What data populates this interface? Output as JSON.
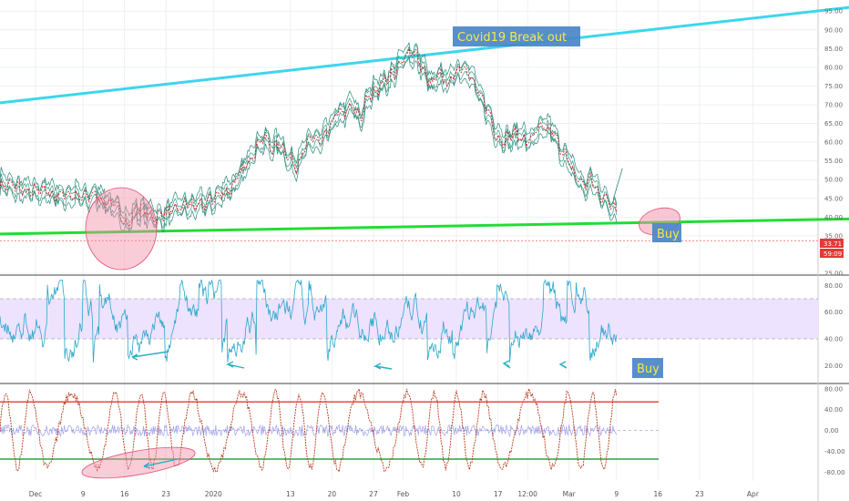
{
  "chart_data": [
    {
      "type": "line",
      "panel": "price",
      "series": [],
      "trendlines": [
        {
          "color": "#3dd6ec",
          "from": {
            "x": "Nov 25",
            "y": 70.5
          },
          "to": {
            "x": "Apr 10",
            "y": 96
          }
        },
        {
          "color": "#22dd33",
          "from": {
            "x": "Nov 25",
            "y": 35.5
          },
          "to": {
            "x": "Apr 10",
            "y": 39.5
          }
        }
      ],
      "ylim": [
        25,
        97
      ],
      "y_ticks": [
        "95.00",
        "90.00",
        "85.00",
        "80.00",
        "75.00",
        "70.00",
        "65.00",
        "60.00",
        "55.00",
        "50.00",
        "45.00",
        "40.00",
        "35.00",
        "25.00"
      ],
      "price_samples": [
        49,
        48.5,
        47.8,
        47.2,
        46.6,
        47.2,
        46.8,
        46.2,
        45.6,
        46.0,
        45.5,
        45.0,
        46.0,
        44.5,
        43.0,
        41.5,
        38.0,
        42.0,
        41.5,
        40.5,
        40.0,
        41.0,
        42.5,
        43.0,
        42.8,
        43.5,
        44.0,
        45.0,
        47.0,
        48.0,
        51.0,
        55.0,
        59.0,
        61.0,
        58.5,
        60.0,
        55.5,
        54.0,
        58.0,
        61.0,
        60.0,
        63.0,
        67.0,
        68.0,
        70.0,
        66.0,
        72.0,
        74.5,
        76.0,
        78.0,
        81.0,
        84.0,
        83.0,
        79.0,
        75.0,
        78.0,
        76.0,
        79.0,
        80.0,
        77.0,
        72.0,
        68.0,
        62.0,
        60.5,
        61.5,
        62.0,
        60.0,
        62.5,
        64.0,
        63.0,
        58.0,
        55.0,
        51.0,
        48.0,
        50.0,
        46.0,
        44.0,
        42.0
      ],
      "annotations": {
        "title_box": "Covid19 Break out",
        "buy_label": "Buy",
        "price_tag": "33.71",
        "countdown_tag": "59:09"
      }
    },
    {
      "type": "line",
      "panel": "rsi",
      "ylim": [
        10,
        85
      ],
      "band": [
        40,
        70
      ],
      "y_ticks": [
        "80.00",
        "60.00",
        "40.00",
        "20.00"
      ],
      "annotations": {
        "buy_label": "Buy"
      }
    },
    {
      "type": "line",
      "panel": "oscillator",
      "ylim": [
        -90,
        85
      ],
      "upper_level": 55,
      "lower_level": -55,
      "y_ticks": [
        "80.00",
        "40.00",
        "0.00",
        "-40.00",
        "-80.00"
      ]
    }
  ],
  "x_axis": {
    "labels": [
      {
        "text": "Dec",
        "d": 6
      },
      {
        "text": "9",
        "d": 14
      },
      {
        "text": "16",
        "d": 21
      },
      {
        "text": "23",
        "d": 28
      },
      {
        "text": "2020",
        "d": 36
      },
      {
        "text": "13",
        "d": 49
      },
      {
        "text": "20",
        "d": 56
      },
      {
        "text": "27",
        "d": 63
      },
      {
        "text": "Feb",
        "d": 68
      },
      {
        "text": "10",
        "d": 77
      },
      {
        "text": "17",
        "d": 84
      },
      {
        "text": "12:00",
        "d": 89
      },
      {
        "text": "Mar",
        "d": 96
      },
      {
        "text": "9",
        "d": 104
      },
      {
        "text": "16",
        "d": 111
      },
      {
        "text": "23",
        "d": 118
      },
      {
        "text": "Apr",
        "d": 127
      }
    ]
  },
  "colors": {
    "price_line": "#2e8a7a",
    "price_inner": "#cc2222",
    "rsi_line": "#2aa6cc",
    "rsi_band": "#ede3ff",
    "osc_line": "#b83a1c",
    "osc_hist": "#8a8ae6",
    "upper_level": "#e53935",
    "lower_level": "#2ea043",
    "annotation_box": "#4a86c5",
    "highlight_circle": "#f48fa8",
    "arrow": "#2ab0c0",
    "price_tag": "#e53935"
  }
}
